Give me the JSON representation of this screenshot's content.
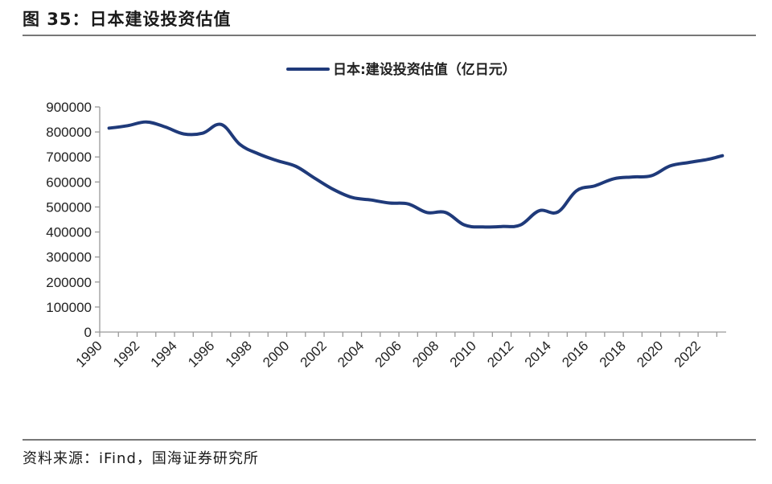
{
  "header": {
    "title": "图 35：日本建设投资估值"
  },
  "footer": {
    "source": "资料来源：iFind，国海证券研究所"
  },
  "colors": {
    "series": "#1f3a7a",
    "axis": "#999999",
    "rule": "#777777"
  },
  "chart_data": {
    "type": "line",
    "title": "",
    "xlabel": "",
    "ylabel": "",
    "xlim": [
      1990,
      2023.5
    ],
    "ylim": [
      0,
      900000
    ],
    "grid": false,
    "legend_position": "top-center",
    "y_ticks": [
      "0",
      "100000",
      "200000",
      "300000",
      "400000",
      "500000",
      "600000",
      "700000",
      "800000",
      "900000"
    ],
    "x_ticks": [
      "1990",
      "1992",
      "1994",
      "1996",
      "1998",
      "2000",
      "2002",
      "2004",
      "2006",
      "2008",
      "2010",
      "2012",
      "2014",
      "2016",
      "2018",
      "2020",
      "2022"
    ],
    "series": [
      {
        "name": "日本:建设投资估值（亿日元）",
        "x": [
          1990.5,
          1991.5,
          1992.5,
          1993.5,
          1994.5,
          1995.5,
          1996.5,
          1997.5,
          1998.5,
          1999.5,
          2000.5,
          2001.5,
          2002.5,
          2003.5,
          2004.5,
          2005.5,
          2006.5,
          2007.5,
          2008.5,
          2009.5,
          2010.5,
          2011.5,
          2012.5,
          2013.5,
          2014.5,
          2015.5,
          2016.5,
          2017.5,
          2018.5,
          2019.5,
          2020.5,
          2021.5,
          2022.5,
          2023.3
        ],
        "values": [
          815000,
          825000,
          840000,
          820000,
          792000,
          795000,
          830000,
          750000,
          712000,
          685000,
          662000,
          615000,
          570000,
          538000,
          528000,
          516000,
          512000,
          478000,
          478000,
          428000,
          420000,
          422000,
          428000,
          485000,
          480000,
          565000,
          585000,
          613000,
          620000,
          625000,
          664000,
          678000,
          690000,
          705000
        ]
      }
    ]
  }
}
